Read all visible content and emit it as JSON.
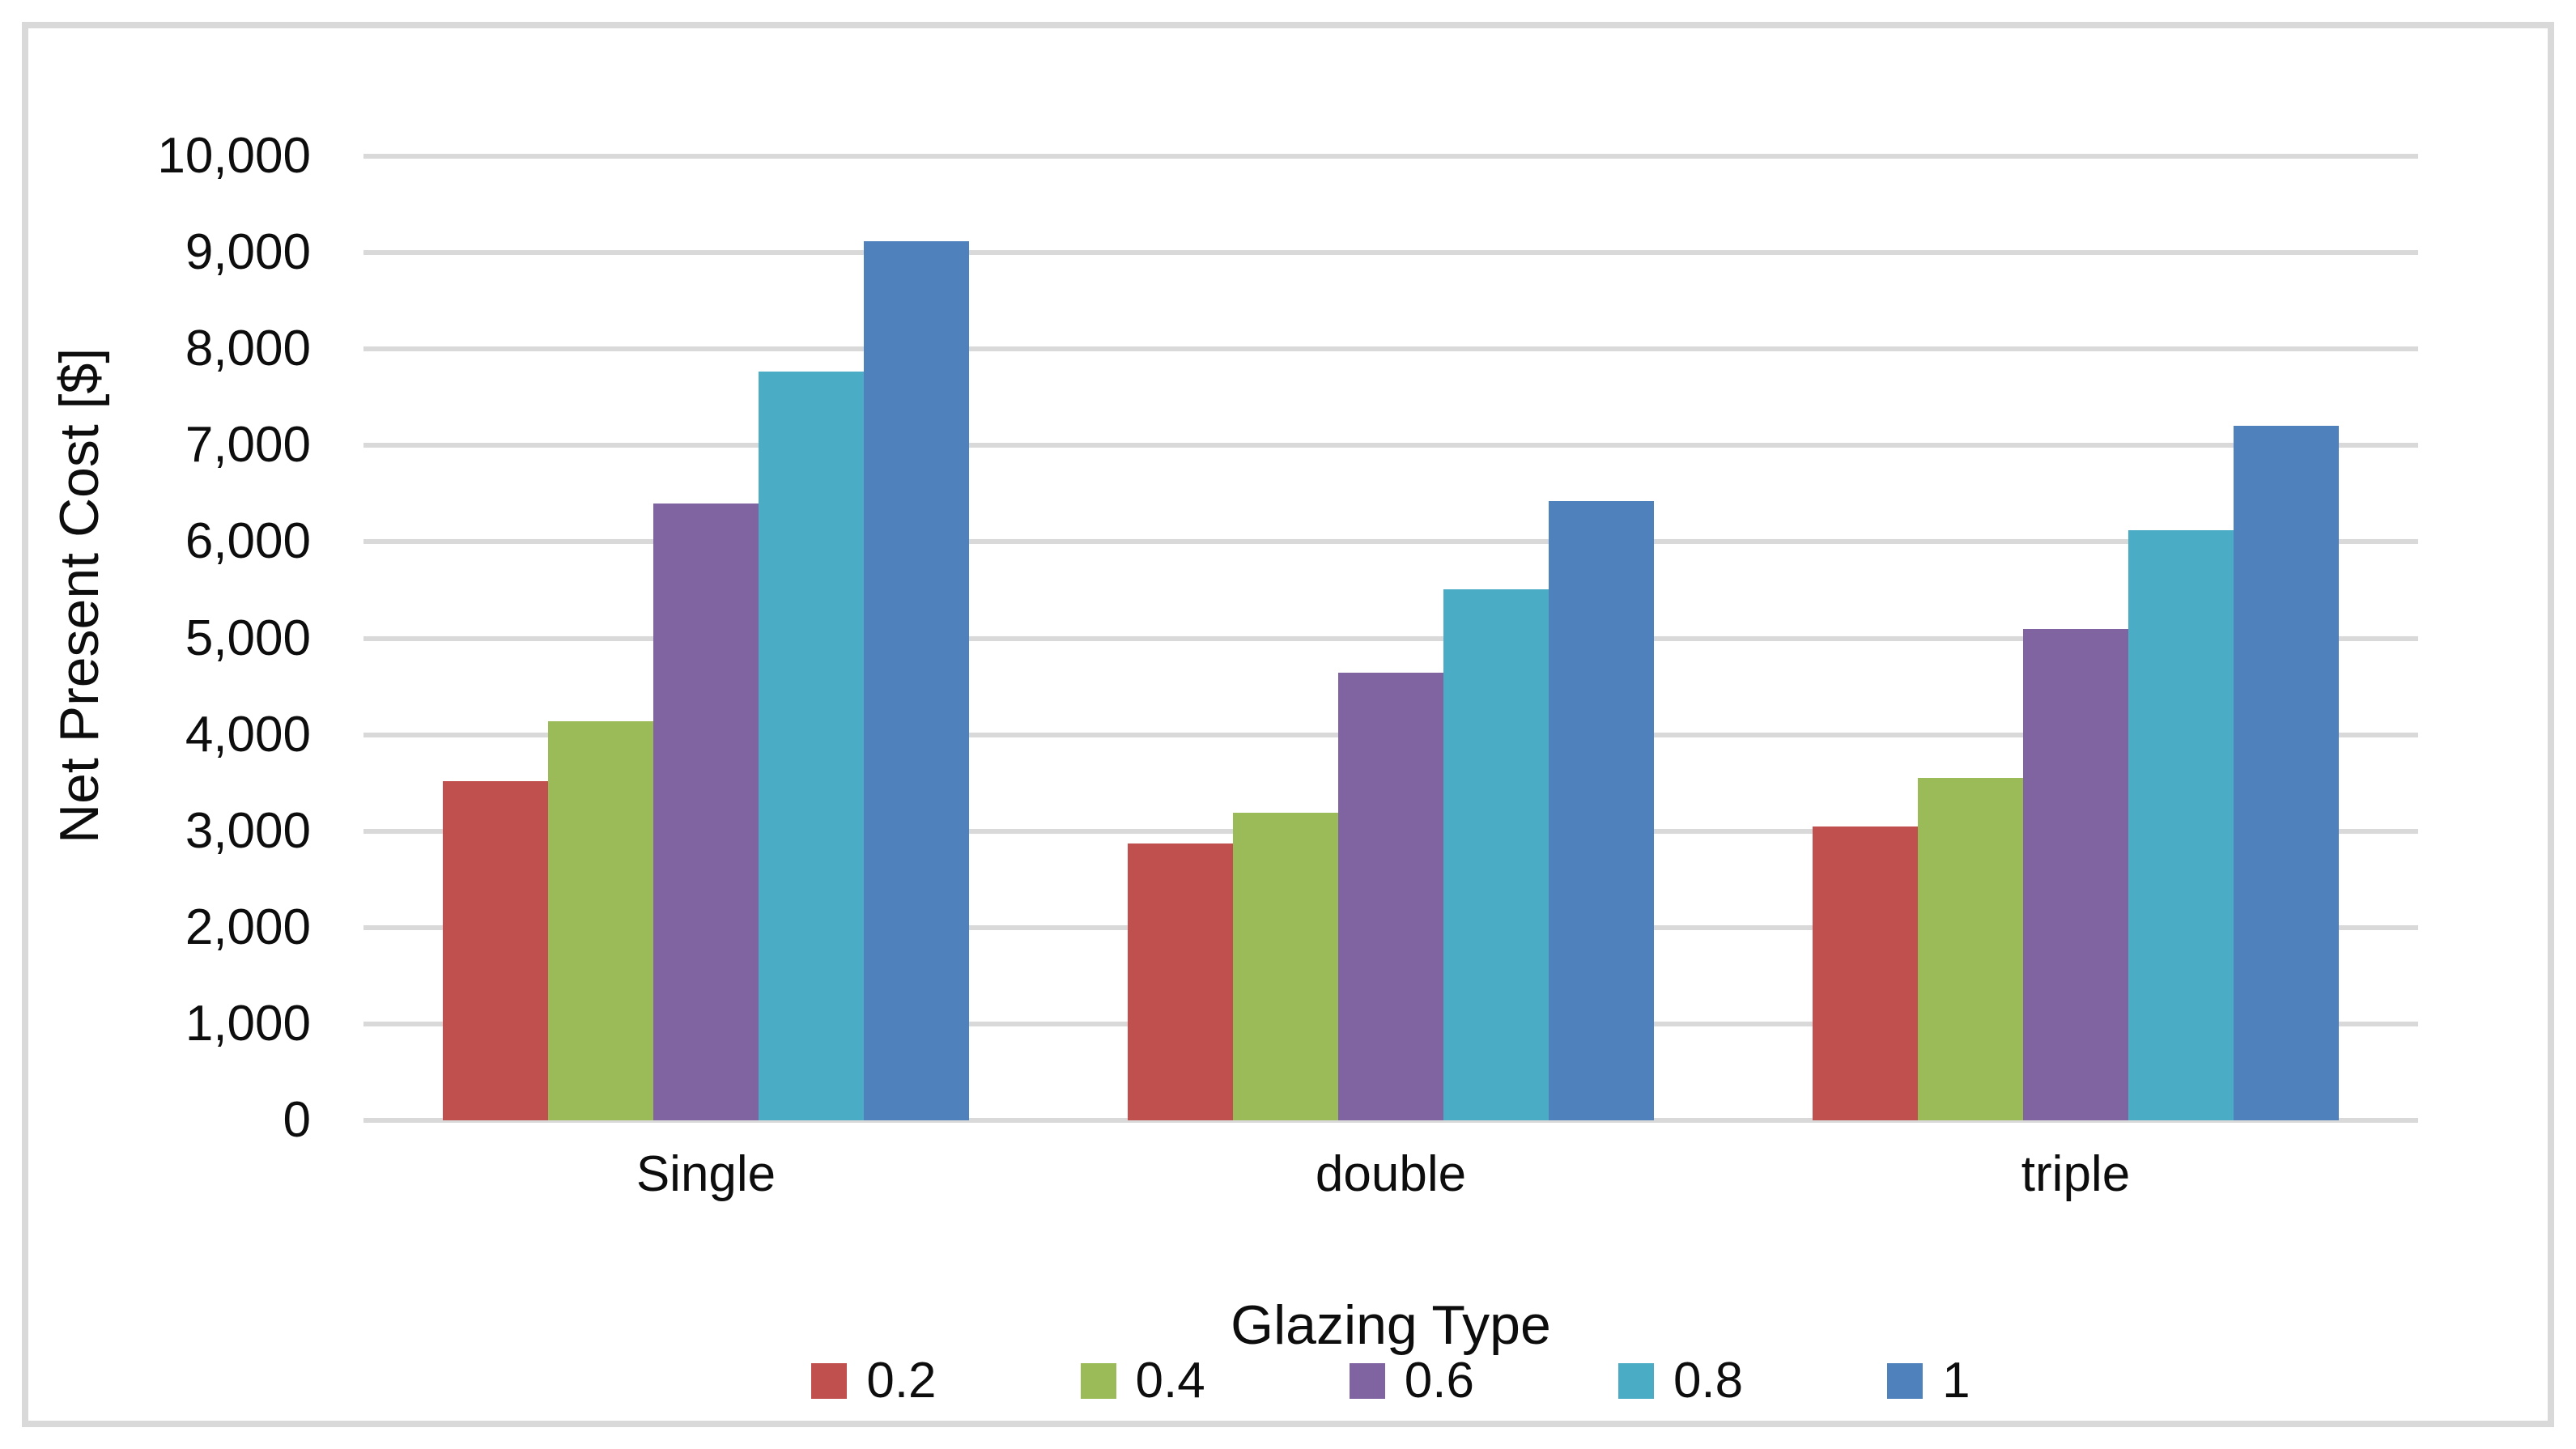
{
  "chart_data": {
    "type": "bar",
    "title": "",
    "xlabel": "Glazing Type",
    "ylabel": "Net Present Cost [$]",
    "categories": [
      "Single",
      "double",
      "triple"
    ],
    "series": [
      {
        "name": "0.2",
        "color": "#C0504D",
        "values": [
          3520,
          2870,
          3050
        ]
      },
      {
        "name": "0.4",
        "color": "#9BBB59",
        "values": [
          4140,
          3190,
          3550
        ]
      },
      {
        "name": "0.6",
        "color": "#8064A2",
        "values": [
          6400,
          4640,
          5100
        ]
      },
      {
        "name": "0.8",
        "color": "#4BACC6",
        "values": [
          7770,
          5510,
          6120
        ]
      },
      {
        "name": "1",
        "color": "#4F81BD",
        "values": [
          9120,
          6420,
          7200
        ]
      }
    ],
    "ylim": [
      0,
      10000
    ],
    "ytick_step": 1000,
    "ytick_labels": [
      "0",
      "1,000",
      "2,000",
      "3,000",
      "4,000",
      "5,000",
      "6,000",
      "7,000",
      "8,000",
      "9,000",
      "10,000"
    ],
    "grid": true,
    "gridline_color": "#D9D9D9",
    "frame_color": "#D9D9D9",
    "background": "#FFFFFF",
    "legend_position": "bottom"
  }
}
